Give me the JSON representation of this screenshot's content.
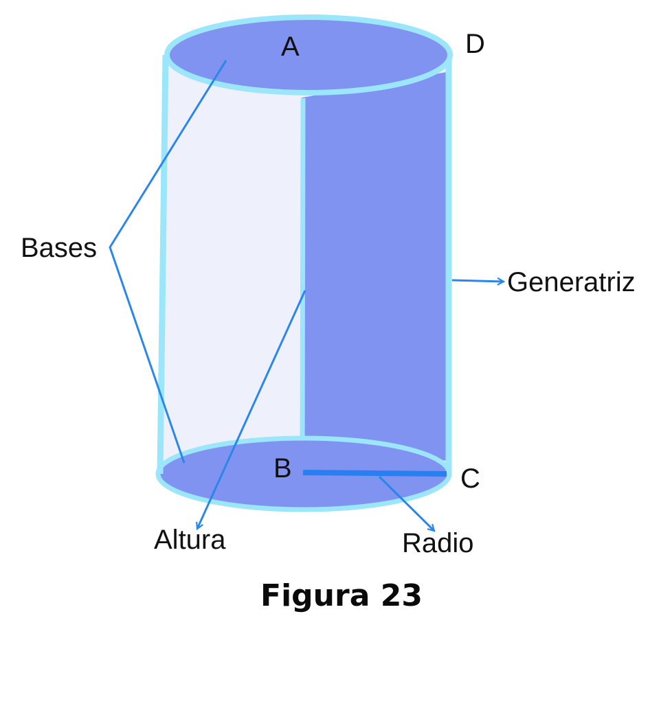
{
  "colors": {
    "base_fill": "#8093f0",
    "outline": "#9ce6fb",
    "side_fill": "#eef1fb",
    "rect_fill": "#8093f0",
    "pointer_line": "#2a86ea",
    "radius_line": "#2a7ff0",
    "text": "#111111"
  },
  "points": {
    "a": "A",
    "b": "B",
    "c": "C",
    "d": "D"
  },
  "labels": {
    "bases": "Bases",
    "generatriz": "Generatriz",
    "altura": "Altura",
    "radio": "Radio"
  },
  "caption": "Figura 23"
}
